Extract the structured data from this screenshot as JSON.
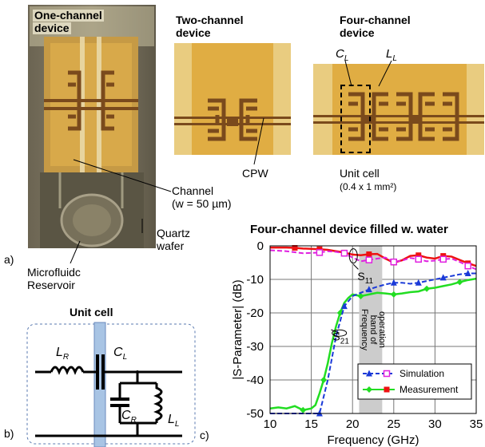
{
  "photos": {
    "one_channel_title": [
      "One-channel",
      "device"
    ],
    "two_channel_title": [
      "Two-channel",
      "device"
    ],
    "four_channel_title": [
      "Four-channel",
      "device"
    ],
    "cl_label": {
      "main": "C",
      "sub": "L"
    },
    "ll_label": {
      "main": "L",
      "sub": "L"
    },
    "cpw_label": "CPW",
    "unit_cell_label": "Unit cell",
    "unit_cell_size": "(0.4 x 1 mm²)",
    "channel_label": "Channel",
    "channel_width": "(w = 50 µm)",
    "quartz_label": [
      "Quartz",
      "wafer"
    ],
    "reservoir_label": [
      "Microfluidc",
      "Reservoir"
    ],
    "panel_a": "a)",
    "colors": {
      "gold": "#d9a53a",
      "gold_light": "#e8b94c",
      "trace": "#7a4a1c",
      "dark_bg": "#4a4638"
    }
  },
  "circuit": {
    "title": "Unit cell",
    "panel_b": "b)",
    "lr": {
      "main": "L",
      "sub": "R"
    },
    "cl": {
      "main": "C",
      "sub": "L"
    },
    "cr": {
      "main": "C",
      "sub": "R"
    },
    "ll": {
      "main": "L",
      "sub": "L"
    },
    "channel_color": "#a8c4e4"
  },
  "chart_data": {
    "type": "line",
    "title": "Four-channel device filled w. water",
    "xlabel": "Frequency (GHz)",
    "ylabel": "|S-Parameter| (dB)",
    "xlim": [
      10,
      35
    ],
    "ylim": [
      -50,
      0
    ],
    "xticks": [
      10,
      15,
      20,
      25,
      30,
      35
    ],
    "yticks": [
      0,
      -10,
      -20,
      -30,
      -40,
      -50
    ],
    "grid": true,
    "legend_position": "bottom-right",
    "panel_label": "c)",
    "band_label": [
      "Frequency",
      "band of",
      "operation"
    ],
    "band": [
      20.8,
      23.6
    ],
    "annotations": [
      {
        "text": "S",
        "sub": "11",
        "x": 20.6,
        "y": -5
      },
      {
        "text": "S",
        "sub": "21",
        "x": 17.6,
        "y": -23
      }
    ],
    "series": [
      {
        "name": "Simulation",
        "color": "#e020e0",
        "marker": "square-open",
        "x": [
          10,
          12,
          14,
          16,
          17,
          18,
          19,
          20,
          21,
          22,
          23,
          24,
          25,
          26,
          27,
          28,
          29,
          30,
          31,
          32,
          33,
          34,
          35
        ],
        "s11": [
          -1.3,
          -1.6,
          -2.2,
          -2.0,
          -1.6,
          -1.8,
          -2.2,
          -3.5,
          -4.6,
          -4.2,
          -3.8,
          -3.5,
          -4.8,
          -4.4,
          -3.6,
          -4.0,
          -4.6,
          -4.4,
          -4.0,
          -3.8,
          -4.8,
          -6.0,
          -7.0
        ],
        "s21": [
          -50.5,
          -50.5,
          -50.5,
          -50.2,
          -40,
          -27,
          -18,
          -15,
          -14,
          -13,
          -12.2,
          -11.5,
          -11,
          -11,
          -11.3,
          -11,
          -10.5,
          -10,
          -9.5,
          -9.0,
          -8.5,
          -8.2,
          -8.2
        ]
      },
      {
        "name": "Measurement",
        "color": "#ee1111",
        "marker": "square-filled",
        "x": [
          10,
          11,
          12,
          13,
          14,
          15,
          16,
          17,
          18,
          19,
          20,
          21,
          22,
          23,
          24,
          25,
          26,
          27,
          28,
          29,
          30,
          31,
          32,
          33,
          34,
          35
        ],
        "y": [
          -0.5,
          -0.5,
          -0.5,
          -0.6,
          -0.8,
          -0.9,
          -1.0,
          -1.2,
          -1.6,
          -2.0,
          -2.6,
          -2.8,
          -2.5,
          -2.4,
          -3.8,
          -5.0,
          -4.3,
          -3.0,
          -2.8,
          -3.5,
          -3.8,
          -3.0,
          -3.2,
          -4.2,
          -5.2,
          -6.0
        ]
      },
      {
        "name": "S21 simulation",
        "color": "#1a3ad8",
        "marker": "triangle",
        "x": [
          10,
          12,
          14,
          16,
          17,
          18,
          19,
          20,
          21,
          22,
          23,
          24,
          25,
          26,
          27,
          28,
          29,
          30,
          31,
          32,
          33,
          34,
          35
        ],
        "y": [
          -50.5,
          -50.5,
          -50.5,
          -50.2,
          -40,
          -27,
          -18,
          -15,
          -14,
          -13,
          -12.2,
          -11.5,
          -11,
          -11,
          -11.3,
          -11,
          -10.5,
          -10,
          -9.5,
          -9.0,
          -8.5,
          -8.2,
          -8.2
        ]
      },
      {
        "name": "S21 measurement",
        "color": "#22dd22",
        "marker": "diamond",
        "x": [
          10,
          11,
          12,
          13,
          14,
          15,
          15.5,
          16,
          16.5,
          17,
          17.5,
          18,
          18.5,
          19,
          19.5,
          20,
          21,
          22,
          23,
          24,
          25,
          26,
          27,
          28,
          29,
          30,
          31,
          32,
          33,
          34,
          35
        ],
        "y": [
          -48.5,
          -48.2,
          -48.5,
          -47.8,
          -49.0,
          -48.5,
          -47.5,
          -44,
          -40,
          -35,
          -29,
          -24,
          -20,
          -17,
          -15.5,
          -14.5,
          -15,
          -14.5,
          -14,
          -14.2,
          -14.5,
          -14.2,
          -13.8,
          -13.6,
          -12.8,
          -12.5,
          -12.0,
          -11.5,
          -10.8,
          -10.2,
          -9.8
        ]
      }
    ],
    "legend": [
      {
        "name": "Simulation",
        "color": "#1a3ad8",
        "marker": "triangle",
        "color2": "#e020e0",
        "marker2": "square-open"
      },
      {
        "name": "Measurement",
        "color": "#22dd22",
        "marker": "diamond",
        "color2": "#ee1111",
        "marker2": "square-filled"
      }
    ]
  }
}
